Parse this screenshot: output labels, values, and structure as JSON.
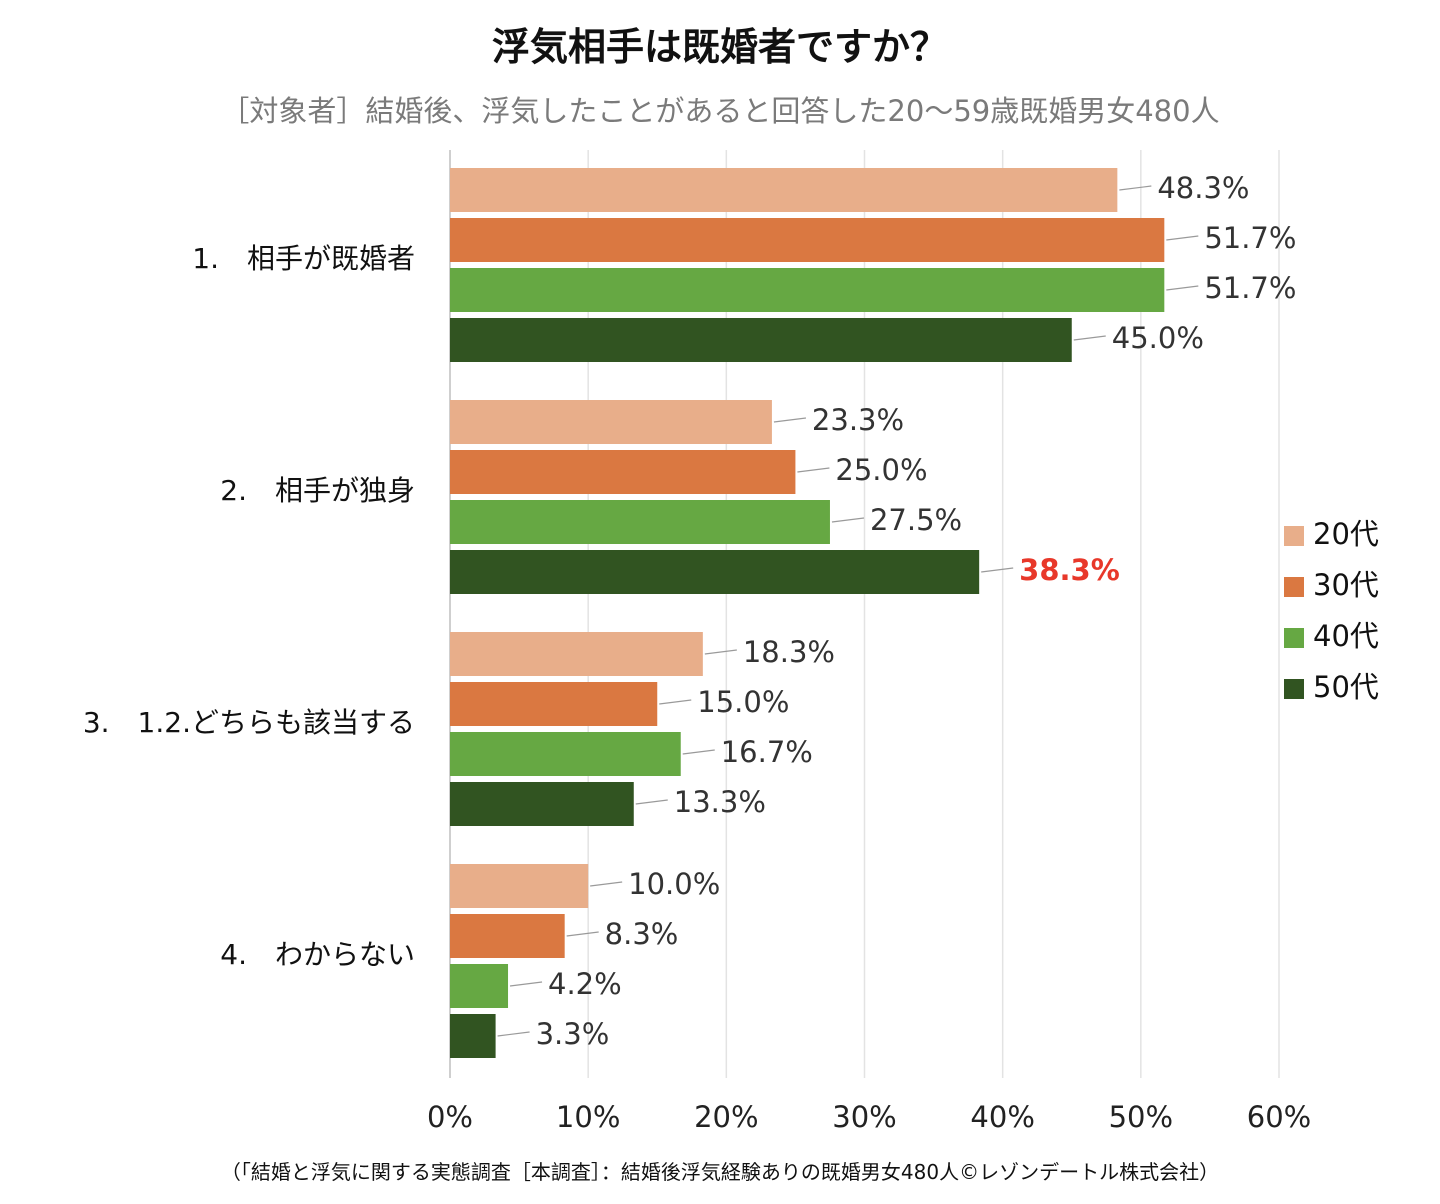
{
  "header": {
    "title": "浮気相手は既婚者ですか？",
    "subtitle": "［対象者］結婚後、浮気したことがあると回答した20〜59歳既婚男女480人"
  },
  "footer": {
    "source": "（「結婚と浮気に関する実態調査［本調査］：結婚後浮気経験ありの既婚男女480人©レゾンデートル株式会社）"
  },
  "chart_data": {
    "type": "bar",
    "orientation": "horizontal",
    "title": "浮気相手は既婚者ですか？",
    "categories": [
      "1.　相手が既婚者",
      "2.　相手が独身",
      "3.　1.2.どちらも該当する",
      "4.　わからない"
    ],
    "series": [
      {
        "name": "20代",
        "color": "#e8ae8a",
        "values": [
          48.3,
          23.3,
          18.3,
          10.0
        ],
        "labels": [
          "48.3%",
          "23.3%",
          "18.3%",
          "10.0%"
        ]
      },
      {
        "name": "30代",
        "color": "#da7841",
        "values": [
          51.7,
          25.0,
          15.0,
          8.3
        ],
        "labels": [
          "51.7%",
          "25.0%",
          "15.0%",
          "8.3%"
        ]
      },
      {
        "name": "40代",
        "color": "#66a843",
        "values": [
          51.7,
          27.5,
          16.7,
          4.2
        ],
        "labels": [
          "51.7%",
          "27.5%",
          "16.7%",
          "4.2%"
        ]
      },
      {
        "name": "50代",
        "color": "#315421",
        "values": [
          45.0,
          38.3,
          13.3,
          3.3
        ],
        "labels": [
          "45.0%",
          "38.3%",
          "13.3%",
          "3.3%"
        ]
      }
    ],
    "highlight": {
      "series": 3,
      "category": 1,
      "color": "#e8382a"
    },
    "xlim": [
      0,
      60
    ],
    "xticks": [
      0,
      10,
      20,
      30,
      40,
      50,
      60
    ],
    "xtick_labels": [
      "0%",
      "10%",
      "20%",
      "30%",
      "40%",
      "50%",
      "60%"
    ],
    "grid": true,
    "legend_position": "right"
  }
}
